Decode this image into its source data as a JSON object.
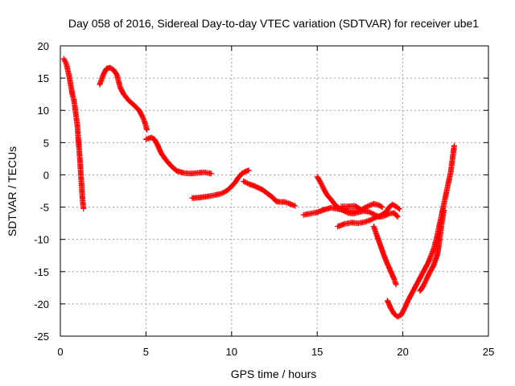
{
  "chart_data": {
    "type": "scatter",
    "title": "Day 058 of 2016, Sidereal Day-to-day VTEC variation (SDTVAR) for receiver ube1",
    "xlabel": "GPS time / hours",
    "ylabel": "SDTVAR / TECUs",
    "xlim": [
      0,
      25
    ],
    "ylim": [
      -25,
      20
    ],
    "xticks": [
      0,
      5,
      10,
      15,
      20,
      25
    ],
    "yticks": [
      -25,
      -20,
      -15,
      -10,
      -5,
      0,
      5,
      10,
      15,
      20
    ],
    "grid": true,
    "marker": "plus",
    "color": "#ff0000",
    "segments": [
      [
        [
          0.2,
          18.0
        ],
        [
          0.35,
          17.2
        ],
        [
          0.5,
          15.5
        ],
        [
          0.6,
          14.0
        ],
        [
          0.7,
          12.5
        ],
        [
          0.8,
          11.5
        ],
        [
          0.9,
          9.5
        ],
        [
          1.0,
          7.5
        ],
        [
          1.05,
          5.5
        ],
        [
          1.1,
          4.0
        ],
        [
          1.15,
          2.0
        ],
        [
          1.2,
          0.0
        ],
        [
          1.25,
          -2.0
        ],
        [
          1.3,
          -4.0
        ],
        [
          1.35,
          -5.2
        ]
      ],
      [
        [
          2.3,
          14.0
        ],
        [
          2.5,
          15.5
        ],
        [
          2.7,
          16.5
        ],
        [
          2.9,
          16.6
        ],
        [
          3.1,
          16.3
        ],
        [
          3.3,
          15.5
        ],
        [
          3.5,
          13.5
        ],
        [
          3.7,
          12.5
        ],
        [
          4.0,
          11.5
        ],
        [
          4.3,
          10.8
        ],
        [
          4.6,
          10.0
        ],
        [
          4.8,
          9.0
        ],
        [
          4.95,
          8.0
        ],
        [
          5.05,
          7.0
        ]
      ],
      [
        [
          5.0,
          5.5
        ],
        [
          5.3,
          5.8
        ],
        [
          5.5,
          5.5
        ],
        [
          5.7,
          4.5
        ],
        [
          5.9,
          3.3
        ],
        [
          6.2,
          2.2
        ],
        [
          6.5,
          1.3
        ],
        [
          6.8,
          0.6
        ],
        [
          7.2,
          0.3
        ],
        [
          7.6,
          0.2
        ],
        [
          8.0,
          0.3
        ],
        [
          8.4,
          0.4
        ],
        [
          8.8,
          0.2
        ]
      ],
      [
        [
          7.7,
          -3.6
        ],
        [
          8.2,
          -3.5
        ],
        [
          8.7,
          -3.3
        ],
        [
          9.1,
          -3.1
        ],
        [
          9.4,
          -2.9
        ],
        [
          9.7,
          -2.5
        ],
        [
          10.0,
          -1.8
        ],
        [
          10.2,
          -1.2
        ],
        [
          10.4,
          -0.4
        ],
        [
          10.6,
          0.2
        ],
        [
          10.8,
          0.5
        ],
        [
          11.0,
          0.7
        ]
      ],
      [
        [
          10.7,
          -1.0
        ],
        [
          11.0,
          -1.4
        ],
        [
          11.4,
          -1.8
        ],
        [
          11.8,
          -2.3
        ],
        [
          12.1,
          -2.9
        ],
        [
          12.4,
          -3.5
        ],
        [
          12.6,
          -4.1
        ],
        [
          12.8,
          -4.2
        ],
        [
          13.1,
          -4.2
        ],
        [
          13.4,
          -4.5
        ],
        [
          13.7,
          -4.8
        ]
      ],
      [
        [
          14.2,
          -6.2
        ],
        [
          14.6,
          -6.0
        ],
        [
          15.0,
          -5.8
        ],
        [
          15.4,
          -5.4
        ],
        [
          15.8,
          -5.1
        ],
        [
          16.2,
          -5.3
        ],
        [
          16.6,
          -5.5
        ],
        [
          17.0,
          -5.7
        ],
        [
          17.4,
          -5.6
        ],
        [
          17.7,
          -5.2
        ],
        [
          18.0,
          -4.8
        ],
        [
          18.3,
          -4.5
        ],
        [
          18.6,
          -4.7
        ],
        [
          18.8,
          -5.0
        ]
      ],
      [
        [
          15.0,
          -0.3
        ],
        [
          15.2,
          -1.2
        ],
        [
          15.4,
          -2.3
        ],
        [
          15.6,
          -3.2
        ],
        [
          15.8,
          -3.8
        ],
        [
          16.0,
          -4.5
        ],
        [
          16.2,
          -5.0
        ],
        [
          16.5,
          -5.5
        ],
        [
          16.8,
          -5.9
        ],
        [
          17.1,
          -6.0
        ],
        [
          17.4,
          -5.8
        ],
        [
          17.7,
          -5.6
        ],
        [
          18.0,
          -5.7
        ],
        [
          18.3,
          -6.1
        ],
        [
          18.6,
          -6.5
        ],
        [
          18.9,
          -6.4
        ],
        [
          19.2,
          -6.0
        ],
        [
          19.5,
          -5.9
        ],
        [
          19.7,
          -6.5
        ]
      ],
      [
        [
          16.4,
          -4.9
        ],
        [
          16.8,
          -4.9
        ],
        [
          17.2,
          -4.8
        ],
        [
          17.5,
          -5.3
        ]
      ],
      [
        [
          16.2,
          -8.0
        ],
        [
          16.6,
          -7.6
        ],
        [
          17.0,
          -7.4
        ],
        [
          17.4,
          -7.5
        ],
        [
          17.8,
          -7.3
        ],
        [
          18.1,
          -7.0
        ],
        [
          18.4,
          -6.6
        ],
        [
          18.7,
          -6.3
        ],
        [
          19.0,
          -5.8
        ],
        [
          19.2,
          -5.0
        ],
        [
          19.4,
          -4.6
        ],
        [
          19.6,
          -4.9
        ],
        [
          19.8,
          -5.3
        ]
      ],
      [
        [
          18.3,
          -8.0
        ],
        [
          18.5,
          -9.5
        ],
        [
          18.7,
          -11.0
        ],
        [
          18.9,
          -12.5
        ],
        [
          19.1,
          -13.8
        ],
        [
          19.3,
          -15.0
        ],
        [
          19.5,
          -16.2
        ],
        [
          19.6,
          -17.0
        ]
      ],
      [
        [
          19.1,
          -19.5
        ],
        [
          19.3,
          -20.7
        ],
        [
          19.5,
          -21.6
        ],
        [
          19.7,
          -22.0
        ],
        [
          19.9,
          -21.7
        ],
        [
          20.1,
          -20.7
        ],
        [
          20.3,
          -19.5
        ],
        [
          20.6,
          -18.0
        ],
        [
          20.9,
          -16.5
        ],
        [
          21.2,
          -15.0
        ],
        [
          21.5,
          -13.5
        ],
        [
          21.8,
          -11.5
        ],
        [
          22.0,
          -9.5
        ],
        [
          22.2,
          -7.0
        ],
        [
          22.4,
          -4.5
        ],
        [
          22.6,
          -2.0
        ],
        [
          22.8,
          0.5
        ],
        [
          22.9,
          2.5
        ],
        [
          23.0,
          4.5
        ]
      ],
      [
        [
          21.0,
          -18.0
        ],
        [
          21.2,
          -17.2
        ],
        [
          21.5,
          -15.5
        ],
        [
          21.8,
          -14.0
        ],
        [
          22.0,
          -12.5
        ],
        [
          22.1,
          -11.0
        ],
        [
          22.2,
          -9.0
        ],
        [
          22.3,
          -7.0
        ],
        [
          22.4,
          -5.5
        ]
      ]
    ]
  }
}
